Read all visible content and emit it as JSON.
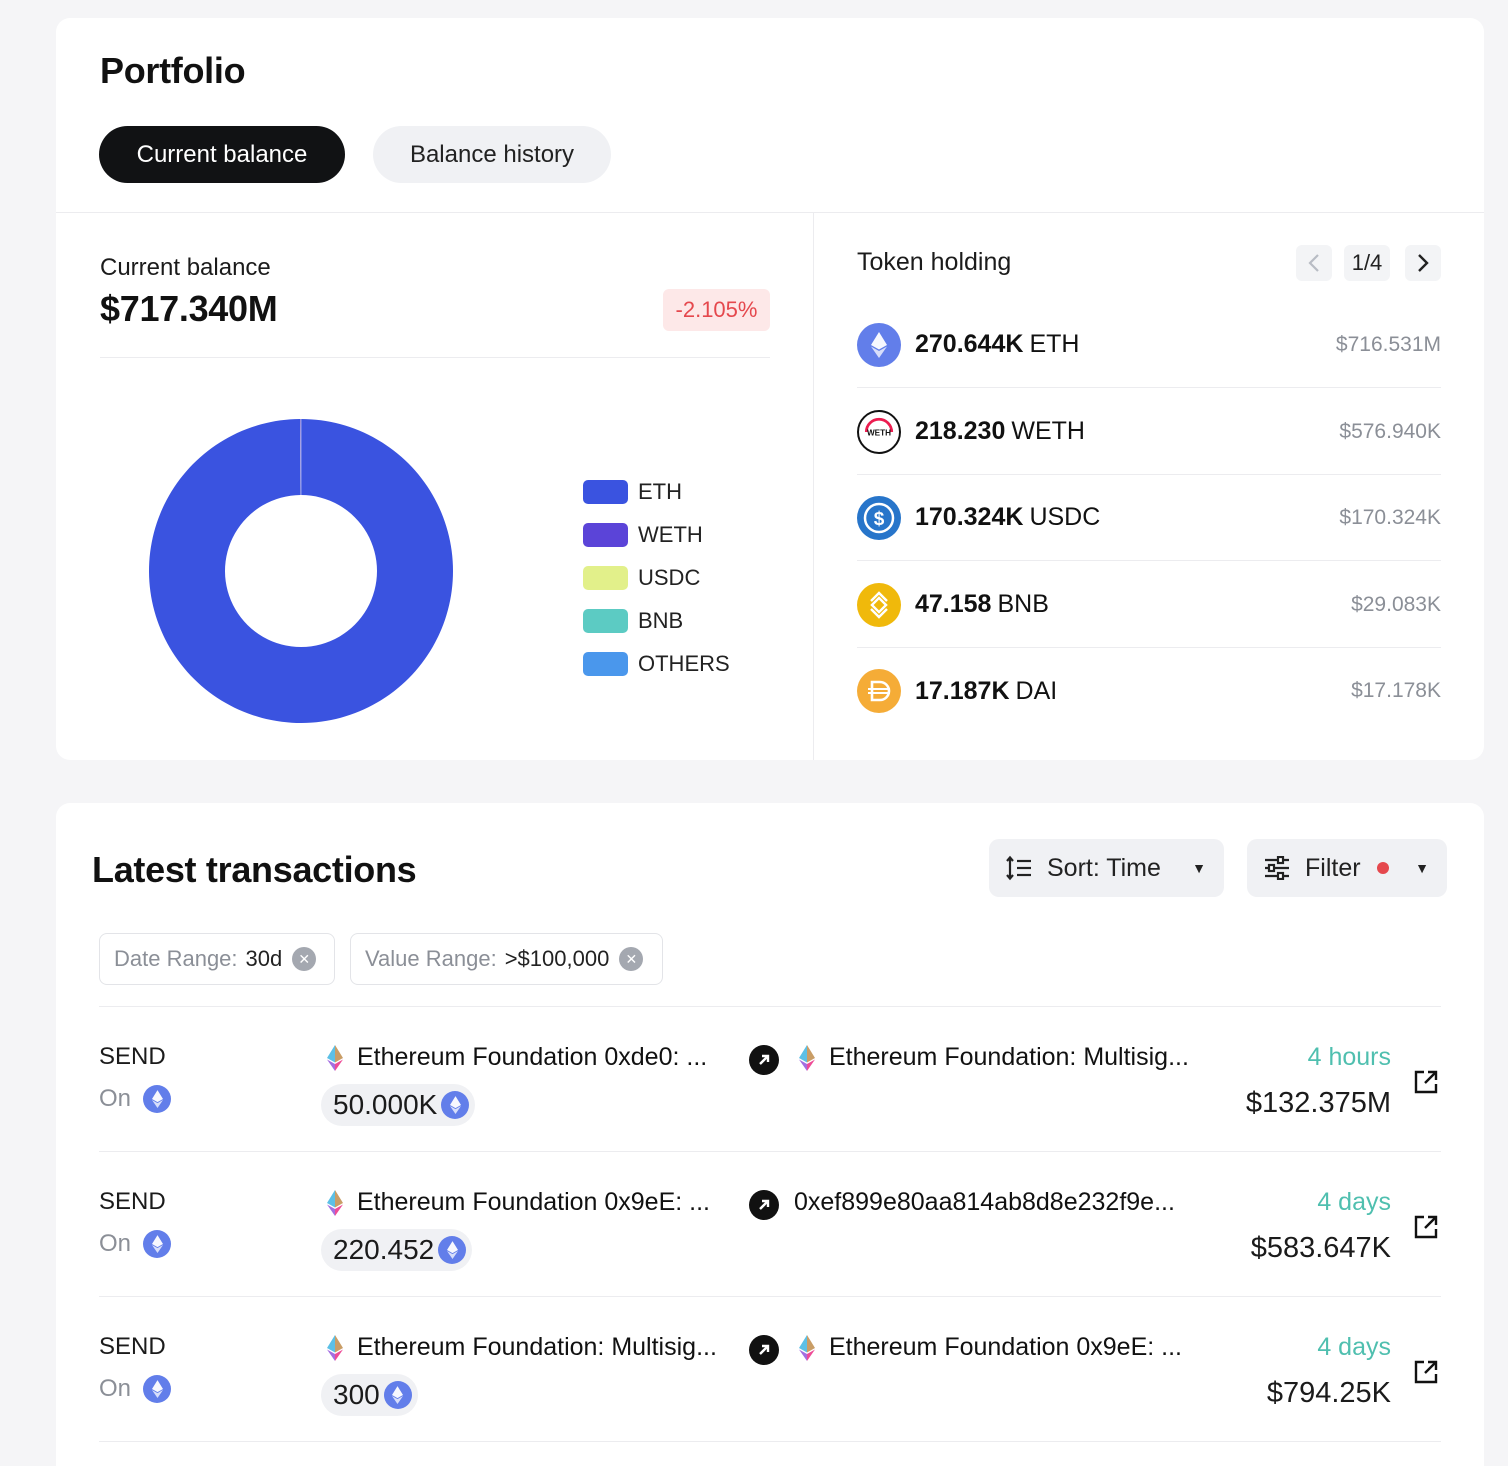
{
  "portfolio": {
    "title": "Portfolio",
    "tabs": [
      {
        "label": "Current balance",
        "active": true
      },
      {
        "label": "Balance history",
        "active": false
      }
    ],
    "balance_label": "Current balance",
    "balance_value": "$717.340M",
    "balance_change": "-2.105%",
    "legend": [
      {
        "label": "ETH",
        "color": "#3a53e0"
      },
      {
        "label": "WETH",
        "color": "#5b44d8"
      },
      {
        "label": "USDC",
        "color": "#e2f08a"
      },
      {
        "label": "BNB",
        "color": "#5ccbc3"
      },
      {
        "label": "OTHERS",
        "color": "#4a97ec"
      }
    ]
  },
  "chart_data": {
    "type": "pie",
    "categories": [
      "ETH",
      "WETH",
      "USDC",
      "BNB",
      "OTHERS"
    ],
    "values": [
      99.9,
      0.08,
      0.02,
      0.004,
      0.002
    ],
    "colors": [
      "#3a53e0",
      "#5b44d8",
      "#e2f08a",
      "#5ccbc3",
      "#4a97ec"
    ],
    "donut": true,
    "legend_position": "right"
  },
  "token_holding": {
    "title": "Token holding",
    "page": "1/4",
    "tokens": [
      {
        "amount": "270.644K",
        "symbol": "ETH",
        "usd": "$716.531M",
        "icon": "eth-icon",
        "color": "#627eea"
      },
      {
        "amount": "218.230",
        "symbol": "WETH",
        "usd": "$576.940K",
        "icon": "weth-icon",
        "color": "#ec1c4f"
      },
      {
        "amount": "170.324K",
        "symbol": "USDC",
        "usd": "$170.324K",
        "icon": "usdc-icon",
        "color": "#2775ca"
      },
      {
        "amount": "47.158",
        "symbol": "BNB",
        "usd": "$29.083K",
        "icon": "bnb-icon",
        "color": "#f0b90b"
      },
      {
        "amount": "17.187K",
        "symbol": "DAI",
        "usd": "$17.178K",
        "icon": "dai-icon",
        "color": "#f5ac37"
      }
    ]
  },
  "transactions": {
    "title": "Latest transactions",
    "sort_label": "Sort: Time",
    "filter_label": "Filter",
    "chips": [
      {
        "key": "Date Range:",
        "value": "30d"
      },
      {
        "key": "Value Range:",
        "value": ">$100,000"
      }
    ],
    "rows": [
      {
        "type": "SEND",
        "on": "On",
        "from": "Ethereum Foundation 0xde0: ...",
        "to": "Ethereum Foundation: Multisig...",
        "to_entity": true,
        "amount": "50.000K",
        "time": "4 hours",
        "usd": "$132.375M"
      },
      {
        "type": "SEND",
        "on": "On",
        "from": "Ethereum Foundation 0x9eE: ...",
        "to": "0xef899e80aa814ab8d8e232f9e...",
        "to_entity": false,
        "amount": "220.452",
        "time": "4 days",
        "usd": "$583.647K"
      },
      {
        "type": "SEND",
        "on": "On",
        "from": "Ethereum Foundation: Multisig...",
        "to": "Ethereum Foundation 0x9eE: ...",
        "to_entity": true,
        "amount": "300",
        "time": "4 days",
        "usd": "$794.25K"
      }
    ]
  }
}
